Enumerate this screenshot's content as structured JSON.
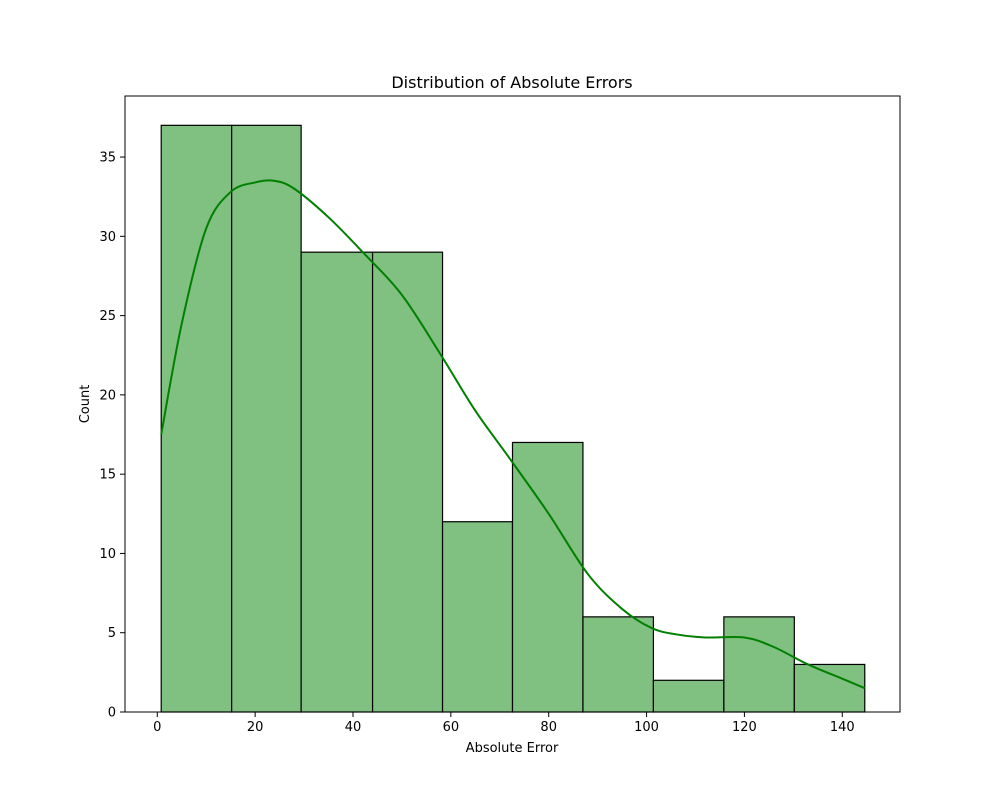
{
  "chart_data": {
    "type": "bar",
    "subtype": "histogram-with-kde",
    "title": "Distribution of Absolute Errors",
    "xlabel": "Absolute Error",
    "ylabel": "Count",
    "xlim": [
      -6.6,
      151.8
    ],
    "ylim": [
      0,
      38.85
    ],
    "xticks": [
      0,
      20,
      40,
      60,
      80,
      100,
      120,
      140
    ],
    "yticks": [
      0,
      5,
      10,
      15,
      20,
      25,
      30,
      35
    ],
    "grid": false,
    "bar_fill": "#80c080",
    "bar_edge": "#000000",
    "kde_color": "#008000",
    "bins": [
      {
        "start": 0.8,
        "end": 15.2,
        "count": 37
      },
      {
        "start": 15.2,
        "end": 29.4,
        "count": 37
      },
      {
        "start": 29.4,
        "end": 44.0,
        "count": 29
      },
      {
        "start": 44.0,
        "end": 58.3,
        "count": 29
      },
      {
        "start": 58.3,
        "end": 72.6,
        "count": 12
      },
      {
        "start": 72.6,
        "end": 87.0,
        "count": 17
      },
      {
        "start": 87.0,
        "end": 101.4,
        "count": 6
      },
      {
        "start": 101.4,
        "end": 115.8,
        "count": 2
      },
      {
        "start": 115.8,
        "end": 130.2,
        "count": 6
      },
      {
        "start": 130.2,
        "end": 144.6,
        "count": 3
      }
    ],
    "kde": {
      "x": [
        0.8,
        5,
        10,
        15,
        20,
        24,
        28,
        35,
        42,
        50,
        58,
        65,
        72,
        80,
        88,
        95,
        101,
        106,
        112,
        120,
        126,
        133,
        140,
        144.6
      ],
      "y": [
        17.5,
        24.5,
        30.5,
        32.8,
        33.4,
        33.5,
        33.0,
        31.2,
        29.0,
        26.3,
        22.5,
        19.0,
        16.0,
        12.5,
        8.7,
        6.5,
        5.3,
        4.9,
        4.7,
        4.7,
        4.1,
        3.0,
        2.1,
        1.5
      ]
    }
  }
}
